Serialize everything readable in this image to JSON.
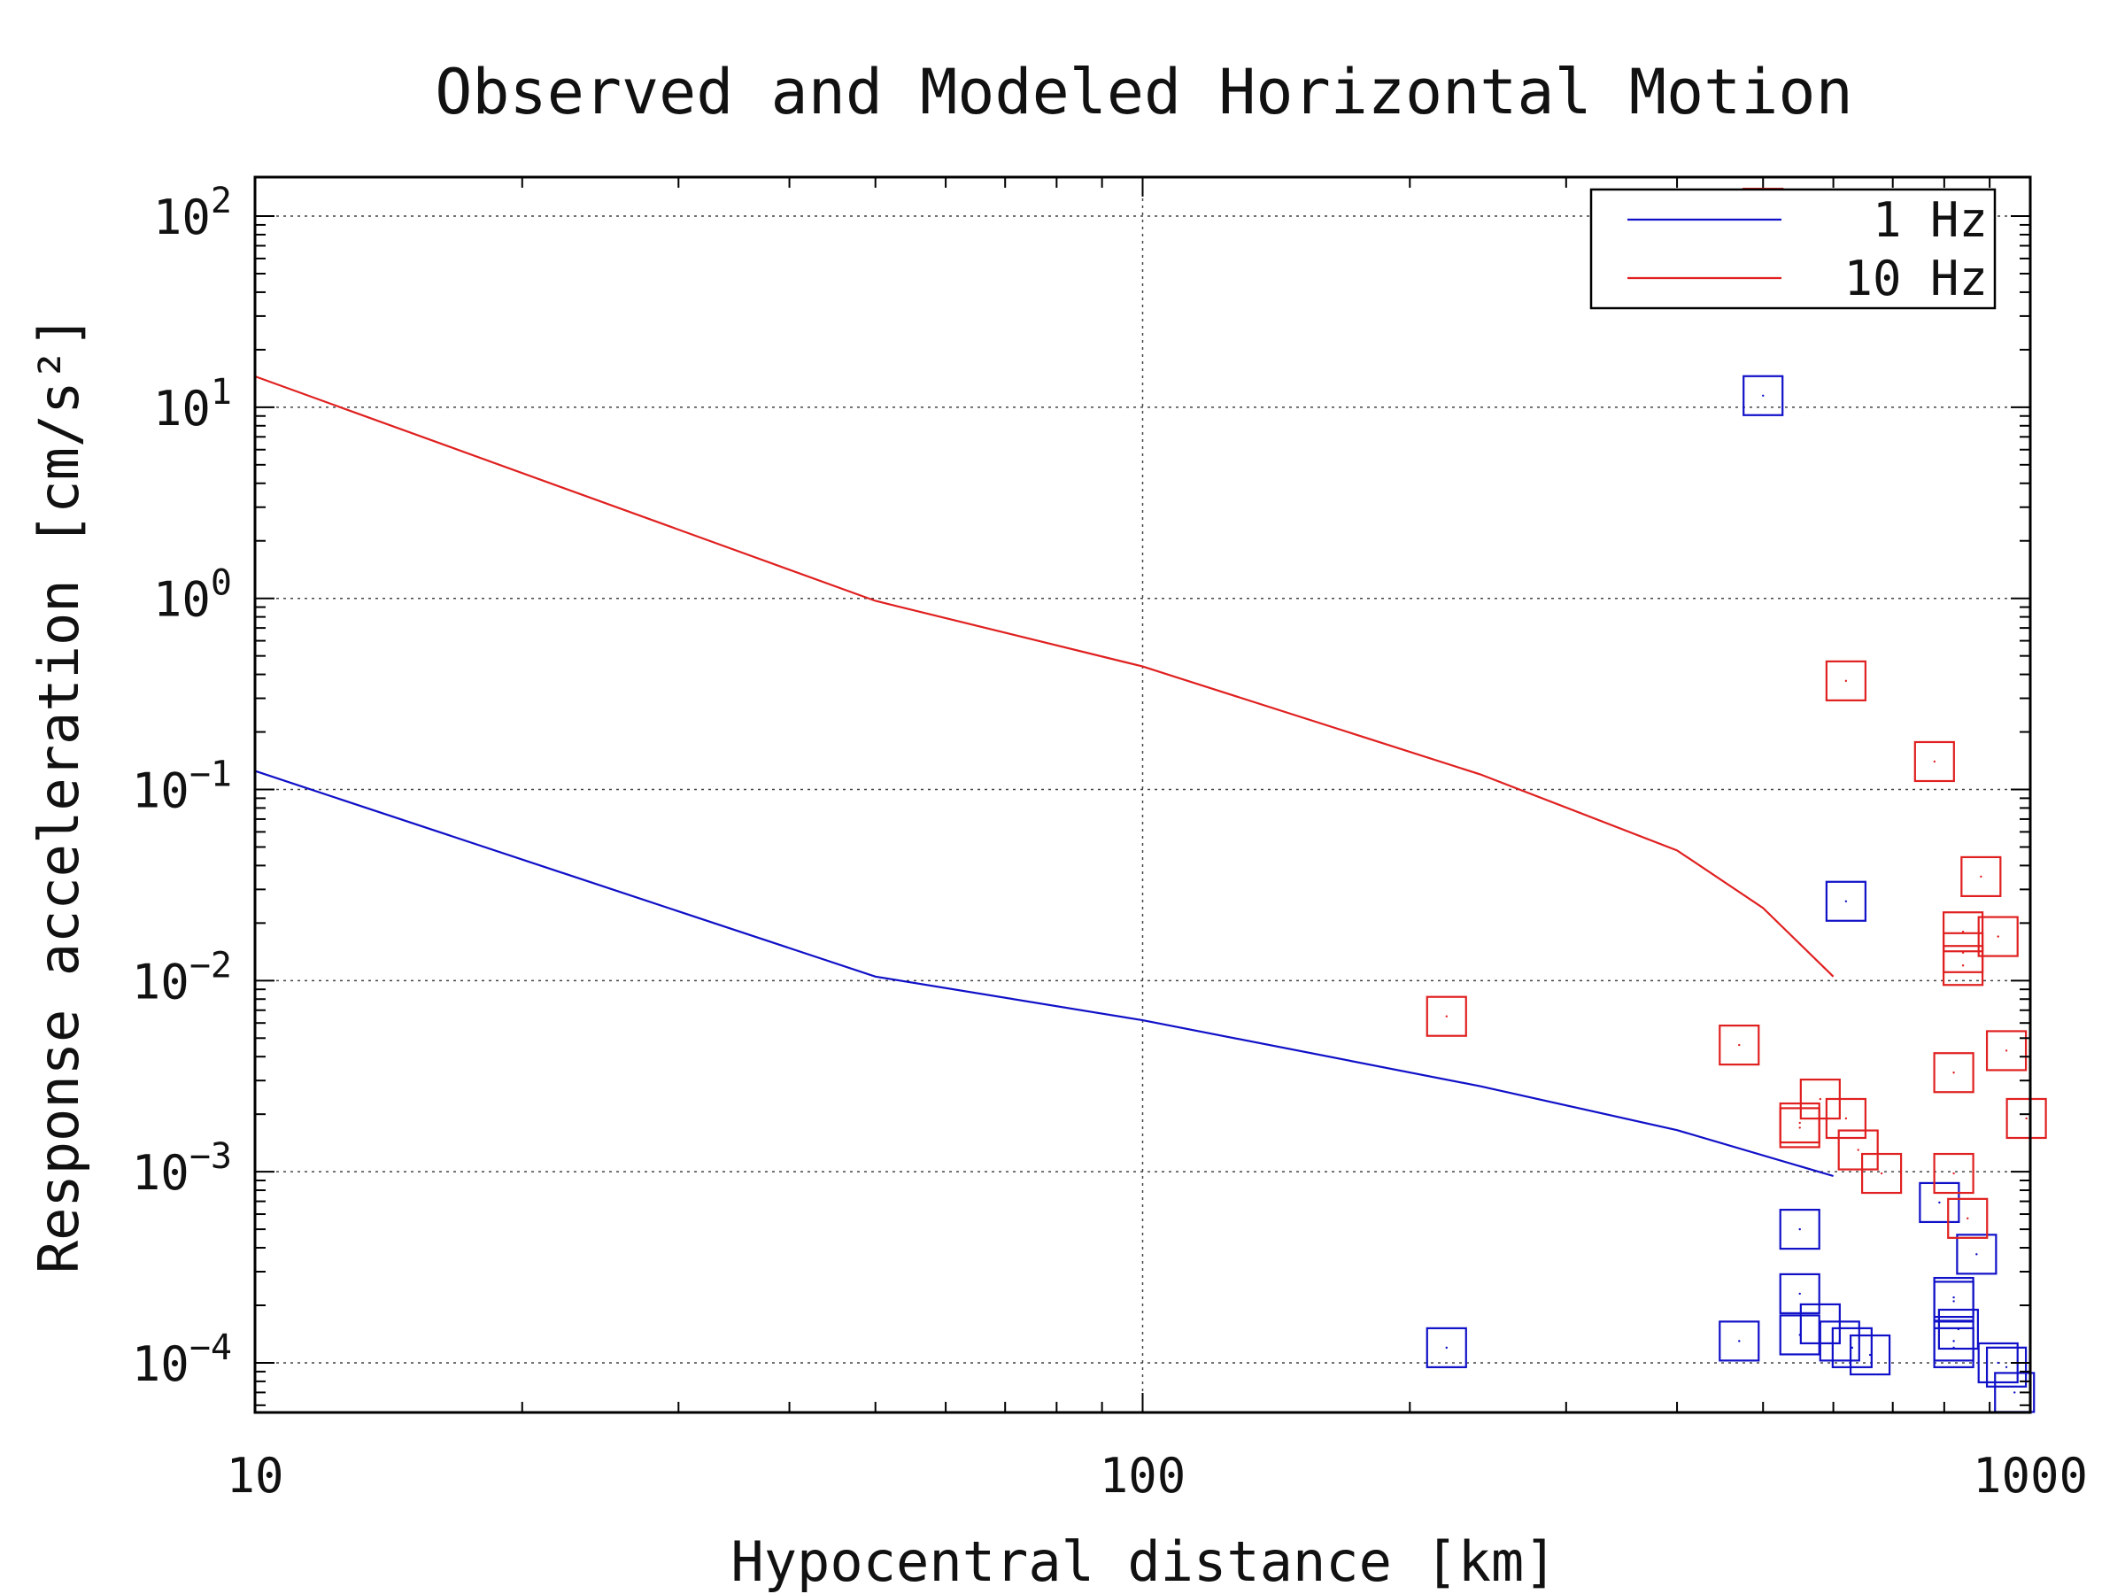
{
  "chart_data": {
    "type": "scatter",
    "title": "Observed and Modeled Horizontal Motion",
    "xlabel": "Hypocentral distance [km]",
    "ylabel": "Response acceleration [cm/s²]",
    "x_scale": "log",
    "y_scale": "log",
    "xlim": [
      10,
      1000
    ],
    "ylim": [
      5.5e-05,
      160
    ],
    "x_ticks": [
      {
        "value": 10,
        "label": "10"
      },
      {
        "value": 100,
        "label": "100"
      },
      {
        "value": 1000,
        "label": "1000"
      }
    ],
    "y_ticks": [
      {
        "value": 100,
        "mantissa": "10",
        "exp": "2"
      },
      {
        "value": 10,
        "mantissa": "10",
        "exp": "1"
      },
      {
        "value": 1,
        "mantissa": "10",
        "exp": "0"
      },
      {
        "value": 0.1,
        "mantissa": "10",
        "exp": "−1"
      },
      {
        "value": 0.01,
        "mantissa": "10",
        "exp": "−2"
      },
      {
        "value": 0.001,
        "mantissa": "10",
        "exp": "−3"
      },
      {
        "value": 0.0001,
        "mantissa": "10",
        "exp": "−4"
      }
    ],
    "grid": true,
    "legend_position": "top-right",
    "colors": {
      "1 Hz": "#1010c8",
      "10 Hz": "#e02020"
    },
    "series": [
      {
        "name": "1 Hz",
        "kind": "line",
        "x": [
          10,
          50,
          100,
          240,
          400,
          600
        ],
        "y": [
          0.125,
          0.0105,
          0.0062,
          0.0028,
          0.00165,
          0.00095
        ]
      },
      {
        "name": "10 Hz",
        "kind": "line",
        "x": [
          10,
          50,
          100,
          240,
          400,
          500,
          600
        ],
        "y": [
          14.5,
          0.97,
          0.44,
          0.12,
          0.048,
          0.024,
          0.0105
        ]
      },
      {
        "name": "1 Hz",
        "kind": "markers",
        "x": [
          220,
          500,
          470,
          550,
          550,
          550,
          580,
          610,
          630,
          660,
          790,
          820,
          820,
          820,
          820,
          830,
          870,
          920,
          940,
          960,
          620
        ],
        "y": [
          0.00012,
          11.5,
          0.00013,
          0.0005,
          0.00023,
          0.00014,
          0.00016,
          0.00013,
          0.00012,
          0.00011,
          0.00069,
          0.00021,
          0.00013,
          0.00012,
          0.00022,
          0.00015,
          0.00037,
          0.0001,
          9.5e-05,
          7e-05,
          0.026
        ]
      },
      {
        "name": "10 Hz",
        "kind": "markers",
        "x": [
          220,
          500,
          620,
          780,
          880,
          840,
          840,
          920,
          840,
          470,
          550,
          550,
          580,
          620,
          640,
          680,
          820,
          820,
          850,
          940,
          990
        ],
        "y": [
          0.0065,
          110,
          0.37,
          0.14,
          0.035,
          0.018,
          0.012,
          0.017,
          0.014,
          0.0046,
          0.0018,
          0.0017,
          0.0024,
          0.0019,
          0.0013,
          0.00098,
          0.0033,
          0.00098,
          0.00057,
          0.0043,
          0.0019
        ]
      }
    ]
  }
}
